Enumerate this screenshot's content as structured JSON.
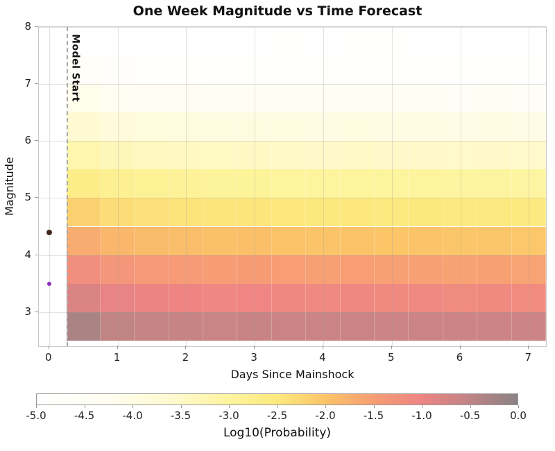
{
  "chart_data": {
    "type": "heatmap",
    "title": "One Week Magnitude vs Time Forecast",
    "xlabel": "Days Since Mainshock",
    "ylabel": "Magnitude",
    "xlim": [
      -0.15,
      7.25
    ],
    "ylim": [
      2.4,
      8.0
    ],
    "x_ticks": [
      0,
      1,
      2,
      3,
      4,
      5,
      6,
      7
    ],
    "x_tick_labels": [
      "0",
      "1",
      "2",
      "3",
      "4",
      "5",
      "6",
      "7"
    ],
    "y_ticks": [
      3,
      4,
      5,
      6,
      7,
      8
    ],
    "y_tick_labels": [
      "3",
      "4",
      "5",
      "6",
      "7",
      "8"
    ],
    "grid": true,
    "x_bins": {
      "start": 0.25,
      "step": 0.5,
      "count": 14
    },
    "mag_bin_lows": [
      2.5,
      3.0,
      3.5,
      4.0,
      4.5,
      5.0,
      5.5,
      6.0,
      6.5,
      7.0,
      7.5
    ],
    "rows_order": "bottom_to_top",
    "values": [
      [
        -0.3,
        -0.5,
        -0.55,
        -0.58,
        -0.6,
        -0.59,
        -0.61,
        -0.62,
        -0.61,
        -0.63,
        -0.62,
        -0.64,
        -0.63,
        -0.64
      ],
      [
        -0.78,
        -0.93,
        -0.98,
        -1.02,
        -1.06,
        -1.04,
        -1.08,
        -1.1,
        -1.08,
        -1.11,
        -1.1,
        -1.13,
        -1.12,
        -1.14
      ],
      [
        -1.2,
        -1.34,
        -1.4,
        -1.44,
        -1.48,
        -1.46,
        -1.5,
        -1.52,
        -1.5,
        -1.53,
        -1.52,
        -1.55,
        -1.54,
        -1.56
      ],
      [
        -1.68,
        -1.83,
        -1.88,
        -1.92,
        -1.96,
        -1.94,
        -1.98,
        -2.0,
        -1.98,
        -2.01,
        -2.0,
        -2.03,
        -2.02,
        -2.04
      ],
      [
        -2.18,
        -2.33,
        -2.38,
        -2.42,
        -2.46,
        -2.44,
        -2.48,
        -2.5,
        -2.48,
        -2.51,
        -2.5,
        -2.53,
        -2.52,
        -2.54
      ],
      [
        -2.68,
        -2.83,
        -2.88,
        -2.92,
        -2.96,
        -2.94,
        -2.98,
        -3.0,
        -2.98,
        -3.01,
        -3.0,
        -3.03,
        -3.02,
        -3.04
      ],
      [
        -3.18,
        -3.33,
        -3.38,
        -3.42,
        -3.46,
        -3.44,
        -3.48,
        -3.5,
        -3.48,
        -3.51,
        -3.5,
        -3.53,
        -3.52,
        -3.54
      ],
      [
        -3.68,
        -3.83,
        -3.88,
        -3.92,
        -3.96,
        -3.94,
        -3.98,
        -4.0,
        -3.98,
        -4.01,
        -4.0,
        -4.03,
        -4.02,
        -4.04
      ],
      [
        -4.18,
        -4.33,
        -4.38,
        -4.42,
        -4.46,
        -4.44,
        -4.48,
        -4.5,
        -4.48,
        -4.51,
        -4.5,
        -4.53,
        -4.52,
        -4.54
      ],
      [
        -4.68,
        -4.8,
        -4.85,
        -4.88,
        -4.82,
        -4.9,
        -4.86,
        -4.92,
        -4.84,
        -4.88,
        -4.92,
        -4.9,
        -4.88,
        -4.92
      ],
      [
        -5.0,
        -5.0,
        -5.0,
        -4.98,
        -5.0,
        -5.0,
        -4.97,
        -5.0,
        -4.9,
        -4.96,
        -5.0,
        -5.0,
        -5.0,
        -5.0
      ]
    ],
    "model_start": {
      "x": 0.25,
      "label": "Model Start",
      "line_color": "#aaaaaa"
    },
    "events": [
      {
        "x": 0,
        "y": 4.4,
        "color": "#42291b",
        "size": 8
      },
      {
        "x": 0,
        "y": 3.5,
        "color": "#8e2fbe",
        "size": 6
      }
    ],
    "colorbar": {
      "label": "Log10(Probability)",
      "range": [
        -5.0,
        0.0
      ],
      "tick_labels": [
        "-5.0",
        "-4.5",
        "-4.0",
        "-3.5",
        "-3.0",
        "-2.5",
        "-2.0",
        "-1.5",
        "-1.0",
        "-0.5",
        "0.0"
      ],
      "stops": [
        {
          "t": 0.0,
          "color": "#ffffff"
        },
        {
          "t": 0.15,
          "color": "#fffdf0"
        },
        {
          "t": 0.3,
          "color": "#fff9c9"
        },
        {
          "t": 0.4,
          "color": "#fdf49d"
        },
        {
          "t": 0.5,
          "color": "#fce97e"
        },
        {
          "t": 0.6,
          "color": "#fbc468"
        },
        {
          "t": 0.7,
          "color": "#f79e74"
        },
        {
          "t": 0.8,
          "color": "#ee8484"
        },
        {
          "t": 0.9,
          "color": "#c08485"
        },
        {
          "t": 1.0,
          "color": "#8a8285"
        }
      ]
    }
  }
}
